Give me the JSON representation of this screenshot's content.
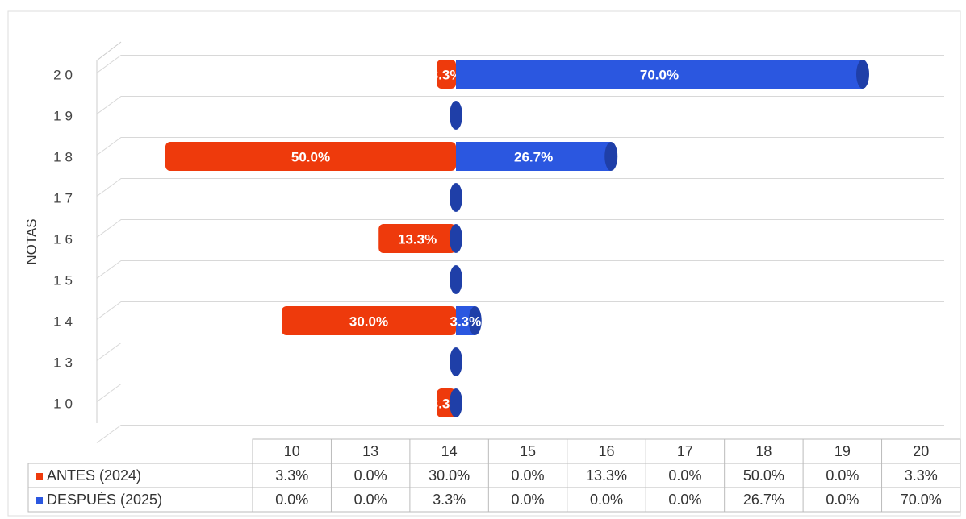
{
  "chart_data": {
    "type": "bar3d-diverging",
    "y_label": "NOTAS",
    "categories": [
      "10",
      "13",
      "14",
      "15",
      "16",
      "17",
      "18",
      "19",
      "20"
    ],
    "series": [
      {
        "name": "ANTES (2024)",
        "color": "#ee3a0c",
        "values": [
          3.3,
          0,
          30,
          0,
          13.3,
          0,
          50,
          0,
          3.3
        ],
        "value_labels": [
          "3.3%",
          "0.0%",
          "30.0%",
          "0.0%",
          "13.3%",
          "0.0%",
          "50.0%",
          "0.0%",
          "3.3%"
        ]
      },
      {
        "name": "DESPUÉS (2025)",
        "color": "#2b57e0",
        "values": [
          0,
          0,
          3.3,
          0,
          0,
          0,
          26.7,
          0,
          70
        ],
        "value_labels": [
          "0.0%",
          "0.0%",
          "3.3%",
          "0.0%",
          "0.0%",
          "0.0%",
          "26.7%",
          "0.0%",
          "70.0%"
        ]
      }
    ],
    "grid": true
  }
}
